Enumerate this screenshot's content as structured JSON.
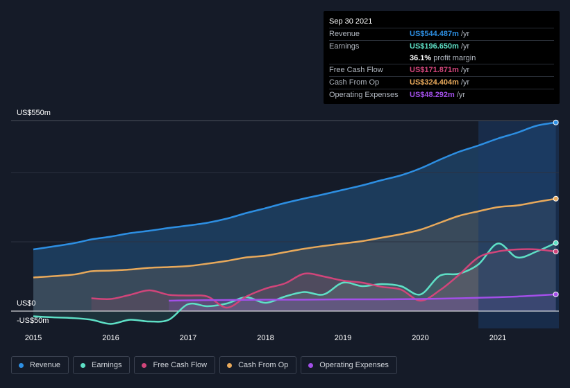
{
  "tooltip": {
    "date": "Sep 30 2021",
    "rows": [
      {
        "label": "Revenue",
        "value": "US$544.487m",
        "unit": "/yr",
        "color": "#2d8fe3"
      },
      {
        "label": "Earnings",
        "value": "US$196.650m",
        "unit": "/yr",
        "color": "#5ee0c6"
      },
      {
        "label": "",
        "value": "36.1%",
        "unit": "profit margin",
        "color": "#ffffff"
      },
      {
        "label": "Free Cash Flow",
        "value": "US$171.871m",
        "unit": "/yr",
        "color": "#d1457a"
      },
      {
        "label": "Cash From Op",
        "value": "US$324.404m",
        "unit": "/yr",
        "color": "#e8a95b"
      },
      {
        "label": "Operating Expenses",
        "value": "US$48.292m",
        "unit": "/yr",
        "color": "#a24fe8"
      }
    ]
  },
  "legend": [
    {
      "label": "Revenue",
      "color": "#2d8fe3"
    },
    {
      "label": "Earnings",
      "color": "#5ee0c6"
    },
    {
      "label": "Free Cash Flow",
      "color": "#d1457a"
    },
    {
      "label": "Cash From Op",
      "color": "#e8a95b"
    },
    {
      "label": "Operating Expenses",
      "color": "#a24fe8"
    }
  ],
  "chart_data": {
    "type": "area",
    "y_labels": {
      "top": "US$550m",
      "zero": "US$0",
      "bottom": "-US$50m"
    },
    "ylim": [
      -50,
      550
    ],
    "x_ticks": [
      "2015",
      "2016",
      "2017",
      "2018",
      "2019",
      "2020",
      "2021"
    ],
    "x_tick_values": [
      2015,
      2016,
      2017,
      2018,
      2019,
      2020,
      2021
    ],
    "xlim": [
      2014.7,
      2021.75
    ],
    "highlight_start": 2020.75,
    "series": [
      {
        "name": "Revenue",
        "color": "#2d8fe3",
        "x": [
          2015,
          2015.5,
          2015.75,
          2016,
          2016.25,
          2016.5,
          2016.75,
          2017,
          2017.25,
          2017.5,
          2017.75,
          2018,
          2018.25,
          2018.5,
          2018.75,
          2019,
          2019.25,
          2019.5,
          2019.75,
          2020,
          2020.25,
          2020.5,
          2020.75,
          2021,
          2021.25,
          2021.5,
          2021.75
        ],
        "y": [
          178,
          195,
          207,
          215,
          225,
          232,
          240,
          247,
          255,
          267,
          283,
          297,
          312,
          325,
          337,
          350,
          363,
          378,
          392,
          412,
          437,
          460,
          478,
          498,
          515,
          535,
          544.5
        ]
      },
      {
        "name": "Earnings",
        "color": "#5ee0c6",
        "x": [
          2015,
          2015.25,
          2015.5,
          2015.75,
          2016,
          2016.25,
          2016.5,
          2016.75,
          2017,
          2017.25,
          2017.5,
          2017.75,
          2018,
          2018.25,
          2018.5,
          2018.75,
          2019,
          2019.25,
          2019.5,
          2019.75,
          2020,
          2020.25,
          2020.5,
          2020.75,
          2021,
          2021.25,
          2021.5,
          2021.75
        ],
        "y": [
          -15,
          -18,
          -20,
          -25,
          -37,
          -25,
          -30,
          -25,
          20,
          14,
          22,
          40,
          24,
          42,
          55,
          48,
          82,
          72,
          78,
          72,
          48,
          102,
          108,
          135,
          195,
          155,
          172,
          196.7
        ]
      },
      {
        "name": "Free Cash Flow",
        "color": "#d1457a",
        "x": [
          2015.75,
          2016,
          2016.25,
          2016.5,
          2016.75,
          2017,
          2017.25,
          2017.5,
          2017.75,
          2018,
          2018.25,
          2018.5,
          2018.75,
          2019,
          2019.25,
          2019.5,
          2019.75,
          2020,
          2020.25,
          2020.5,
          2020.75,
          2021,
          2021.25,
          2021.5,
          2021.75
        ],
        "y": [
          37,
          35,
          47,
          60,
          47,
          45,
          42,
          10,
          42,
          65,
          80,
          108,
          100,
          88,
          82,
          70,
          62,
          30,
          60,
          105,
          155,
          172,
          178,
          178,
          171.9
        ]
      },
      {
        "name": "Cash From Op",
        "color": "#e8a95b",
        "x": [
          2015,
          2015.5,
          2015.75,
          2016,
          2016.25,
          2016.5,
          2016.75,
          2017,
          2017.25,
          2017.5,
          2017.75,
          2018,
          2018.25,
          2018.5,
          2018.75,
          2019,
          2019.25,
          2019.5,
          2019.75,
          2020,
          2020.25,
          2020.5,
          2020.75,
          2021,
          2021.25,
          2021.5,
          2021.75
        ],
        "y": [
          97,
          105,
          115,
          117,
          120,
          125,
          127,
          130,
          137,
          145,
          155,
          160,
          170,
          180,
          188,
          195,
          202,
          212,
          222,
          235,
          255,
          275,
          288,
          300,
          305,
          315,
          324.4
        ]
      },
      {
        "name": "Operating Expenses",
        "color": "#a24fe8",
        "x": [
          2016.75,
          2017,
          2017.5,
          2018,
          2018.5,
          2019,
          2019.5,
          2020,
          2020.5,
          2021,
          2021.25,
          2021.5,
          2021.75
        ],
        "y": [
          30,
          31,
          32,
          33,
          33,
          34,
          34,
          35,
          37,
          40,
          42,
          45,
          48.3
        ]
      }
    ]
  }
}
